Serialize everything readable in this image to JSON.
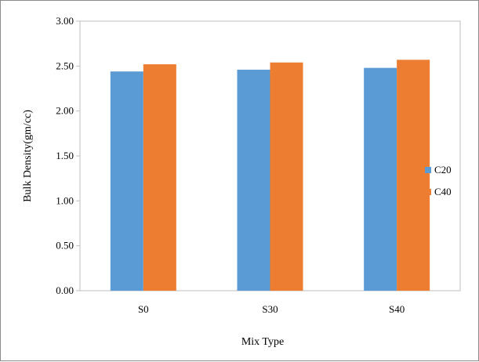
{
  "chart_data": {
    "type": "bar",
    "title": "",
    "xlabel": "Mix Type",
    "ylabel": "Bulk Density(gm/cc)",
    "categories": [
      "S0",
      "S30",
      "S40"
    ],
    "series": [
      {
        "name": "C20",
        "values": [
          2.44,
          2.46,
          2.48
        ],
        "color": "#5b9bd5"
      },
      {
        "name": "C40",
        "values": [
          2.52,
          2.54,
          2.57
        ],
        "color": "#ed7d31"
      }
    ],
    "ylim": [
      0,
      3
    ],
    "yticks": [
      "0.00",
      "0.50",
      "1.00",
      "1.50",
      "2.00",
      "2.50",
      "3.00"
    ],
    "grid": false,
    "legend_position": "right"
  }
}
